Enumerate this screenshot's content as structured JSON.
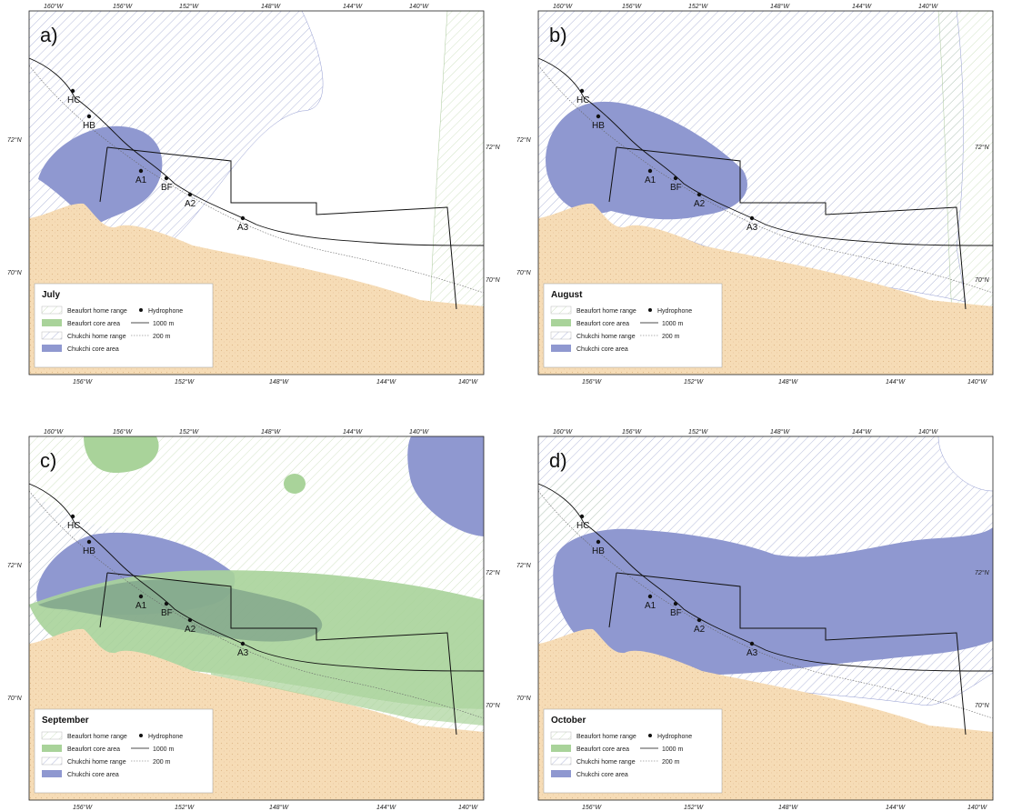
{
  "colors": {
    "land": "#f6dcb6",
    "land_dots": "#e0b98a",
    "beaufort_home_hatch": "#b8d6a8",
    "beaufort_core": "#a9d39a",
    "chukchi_home_hatch": "#b3b9da",
    "chukchi_core": "#8f98d0",
    "frame": "#222222",
    "study_box": "#111111"
  },
  "ticks": {
    "top": [
      "160°W",
      "156°W",
      "152°W",
      "148°W",
      "144°W",
      "140°W"
    ],
    "bottom": [
      "156°W",
      "152°W",
      "148°W",
      "144°W",
      "140°W"
    ],
    "left": [
      "72°N",
      "70°N"
    ],
    "right": [
      "72°N",
      "70°N"
    ]
  },
  "legend": {
    "beaufort_home": "Beaufort home range",
    "beaufort_core": "Beaufort core area",
    "chukchi_home": "Chukchi home range",
    "chukchi_core": "Chukchi core area",
    "hydrophone": "Hydrophone",
    "iso_1000": "1000 m",
    "iso_200": "200 m"
  },
  "sites": [
    "HC",
    "HB",
    "A1",
    "BF",
    "A2",
    "A3"
  ],
  "panels": [
    {
      "letter": "a)",
      "month": "July"
    },
    {
      "letter": "b)",
      "month": "August"
    },
    {
      "letter": "c)",
      "month": "September"
    },
    {
      "letter": "d)",
      "month": "October"
    }
  ]
}
